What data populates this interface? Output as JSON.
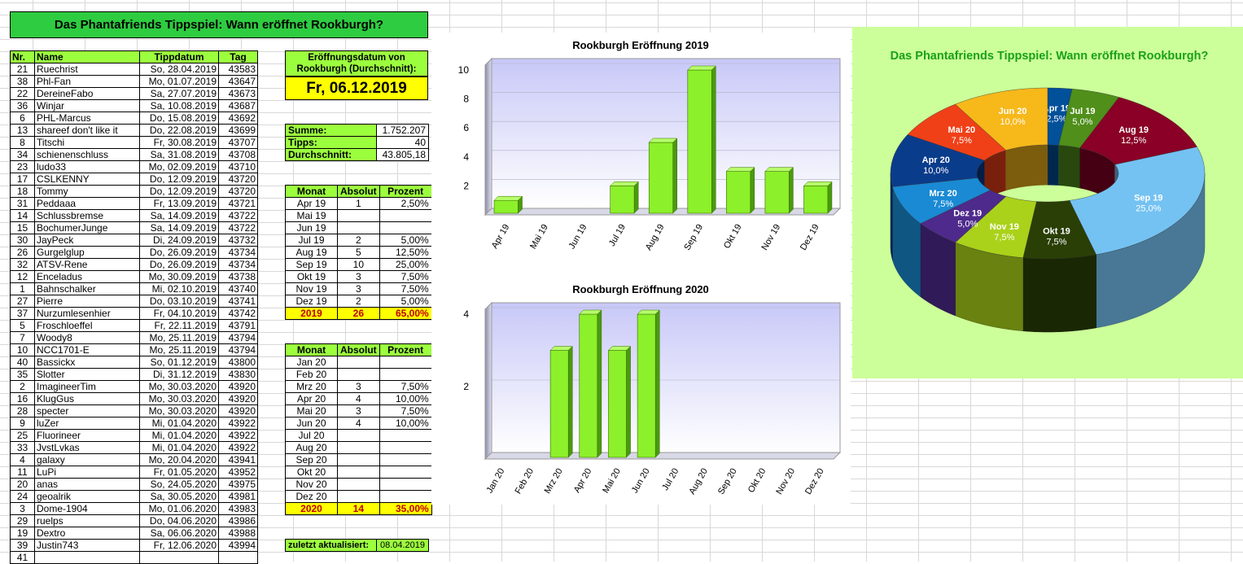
{
  "title": "Das Phantafriends Tippspiel: Wann eröffnet Rookburgh?",
  "table": {
    "headers": [
      "Nr.",
      "Name",
      "Tippdatum",
      "Tag"
    ],
    "rows": [
      [
        "21",
        "Ruechrist",
        "So, 28.04.2019",
        "43583"
      ],
      [
        "38",
        "Phl-Fan",
        "Mo, 01.07.2019",
        "43647"
      ],
      [
        "22",
        "DereineFabo",
        "Sa, 27.07.2019",
        "43673"
      ],
      [
        "36",
        "Winjar",
        "Sa, 10.08.2019",
        "43687"
      ],
      [
        "6",
        "PHL-Marcus",
        "Do, 15.08.2019",
        "43692"
      ],
      [
        "13",
        "shareef don't like it",
        "Do, 22.08.2019",
        "43699"
      ],
      [
        "8",
        "Titschi",
        "Fr, 30.08.2019",
        "43707"
      ],
      [
        "34",
        "schienenschluss",
        "Sa, 31.08.2019",
        "43708"
      ],
      [
        "23",
        "ludo33",
        "Mo, 02.09.2019",
        "43710"
      ],
      [
        "17",
        "CSLKENNY",
        "Do, 12.09.2019",
        "43720"
      ],
      [
        "18",
        "Tommy",
        "Do, 12.09.2019",
        "43720"
      ],
      [
        "31",
        "Peddaaa",
        "Fr, 13.09.2019",
        "43721"
      ],
      [
        "14",
        "Schlussbremse",
        "Sa, 14.09.2019",
        "43722"
      ],
      [
        "15",
        "BochumerJunge",
        "Sa, 14.09.2019",
        "43722"
      ],
      [
        "30",
        "JayPeck",
        "Di, 24.09.2019",
        "43732"
      ],
      [
        "26",
        "Gurgelglup",
        "Do, 26.09.2019",
        "43734"
      ],
      [
        "32",
        "ATSV-Rene",
        "Do, 26.09.2019",
        "43734"
      ],
      [
        "12",
        "Enceladus",
        "Mo, 30.09.2019",
        "43738"
      ],
      [
        "1",
        "Bahnschalker",
        "Mi, 02.10.2019",
        "43740"
      ],
      [
        "27",
        "Pierre",
        "Do, 03.10.2019",
        "43741"
      ],
      [
        "37",
        "Nurzumlesenhier",
        "Fr, 04.10.2019",
        "43742"
      ],
      [
        "5",
        "Froschloeffel",
        "Fr, 22.11.2019",
        "43791"
      ],
      [
        "7",
        "Woody8",
        "Mo, 25.11.2019",
        "43794"
      ],
      [
        "10",
        "NCC1701-E",
        "Mo, 25.11.2019",
        "43794"
      ],
      [
        "40",
        "Bassickx",
        "So, 01.12.2019",
        "43800"
      ],
      [
        "35",
        "Slotter",
        "Di, 31.12.2019",
        "43830"
      ],
      [
        "2",
        "ImagineerTim",
        "Mo, 30.03.2020",
        "43920"
      ],
      [
        "16",
        "KlugGus",
        "Mo, 30.03.2020",
        "43920"
      ],
      [
        "28",
        "specter",
        "Mo, 30.03.2020",
        "43920"
      ],
      [
        "9",
        "luZer",
        "Mi, 01.04.2020",
        "43922"
      ],
      [
        "25",
        "Fluorineer",
        "Mi, 01.04.2020",
        "43922"
      ],
      [
        "33",
        "JvstLvkas",
        "Mi, 01.04.2020",
        "43922"
      ],
      [
        "4",
        "galaxy",
        "Mo, 20.04.2020",
        "43941"
      ],
      [
        "11",
        "LuPi",
        "Fr, 01.05.2020",
        "43952"
      ],
      [
        "20",
        "anas",
        "So, 24.05.2020",
        "43975"
      ],
      [
        "24",
        "geoalrik",
        "Sa, 30.05.2020",
        "43981"
      ],
      [
        "3",
        "Dome-1904",
        "Mo, 01.06.2020",
        "43983"
      ],
      [
        "29",
        "ruelps",
        "Do, 04.06.2020",
        "43986"
      ],
      [
        "19",
        "Dextro",
        "Sa, 06.06.2020",
        "43988"
      ],
      [
        "39",
        "Justin743",
        "Fr, 12.06.2020",
        "43994"
      ],
      [
        "41",
        "",
        "",
        ""
      ]
    ]
  },
  "opening": {
    "label": "Eröffnungsdatum von Rookburgh (Durchschnitt):",
    "value": "Fr, 06.12.2019"
  },
  "stats": [
    {
      "label": "Summe:",
      "value": "1.752.207"
    },
    {
      "label": "Tipps:",
      "value": "40"
    },
    {
      "label": "Durchschnitt:",
      "value": "43.805,18"
    }
  ],
  "months_headers": [
    "Monat",
    "Absolut",
    "Prozent"
  ],
  "months2019": [
    [
      "Apr 19",
      "1",
      "2,50%"
    ],
    [
      "Mai 19",
      "",
      ""
    ],
    [
      "Jun 19",
      "",
      ""
    ],
    [
      "Jul 19",
      "2",
      "5,00%"
    ],
    [
      "Aug 19",
      "5",
      "12,50%"
    ],
    [
      "Sep 19",
      "10",
      "25,00%"
    ],
    [
      "Okt 19",
      "3",
      "7,50%"
    ],
    [
      "Nov 19",
      "3",
      "7,50%"
    ],
    [
      "Dez 19",
      "2",
      "5,00%"
    ]
  ],
  "total2019": [
    "2019",
    "26",
    "65,00%"
  ],
  "months2020": [
    [
      "Jan 20",
      "",
      ""
    ],
    [
      "Feb 20",
      "",
      ""
    ],
    [
      "Mrz 20",
      "3",
      "7,50%"
    ],
    [
      "Apr 20",
      "4",
      "10,00%"
    ],
    [
      "Mai 20",
      "3",
      "7,50%"
    ],
    [
      "Jun 20",
      "4",
      "10,00%"
    ],
    [
      "Jul 20",
      "",
      ""
    ],
    [
      "Aug 20",
      "",
      ""
    ],
    [
      "Sep 20",
      "",
      ""
    ],
    [
      "Okt 20",
      "",
      ""
    ],
    [
      "Nov 20",
      "",
      ""
    ],
    [
      "Dez 20",
      "",
      ""
    ]
  ],
  "total2020": [
    "2020",
    "14",
    "35,00%"
  ],
  "updated": {
    "label": "zuletzt aktualisiert:",
    "value": "08.04.2019"
  },
  "chart_data": [
    {
      "type": "bar",
      "title": "Rookburgh Eröffnung 2019",
      "categories": [
        "Apr 19",
        "Mai 19",
        "Jun 19",
        "Jul 19",
        "Aug 19",
        "Sep 19",
        "Okt 19",
        "Nov 19",
        "Dez 19"
      ],
      "values": [
        1,
        0,
        0,
        2,
        5,
        10,
        3,
        3,
        2
      ],
      "ylim": [
        0,
        10
      ],
      "yticks": [
        2,
        4,
        6,
        8,
        10
      ],
      "color": "#8cf02a"
    },
    {
      "type": "bar",
      "title": "Rookburgh Eröffnung 2020",
      "categories": [
        "Jan 20",
        "Feb 20",
        "Mrz 20",
        "Apr 20",
        "Mai 20",
        "Jun 20",
        "Jul 20",
        "Aug 20",
        "Sep 20",
        "Okt 20",
        "Nov 20",
        "Dez 20"
      ],
      "values": [
        0,
        0,
        3,
        4,
        3,
        4,
        0,
        0,
        0,
        0,
        0,
        0
      ],
      "ylim": [
        0,
        4
      ],
      "yticks": [
        2,
        4
      ],
      "color": "#8cf02a"
    },
    {
      "type": "pie",
      "title": "Das Phantafriends Tippspiel: Wann eröffnet Rookburgh?",
      "slices": [
        {
          "label": "Apr 19",
          "pct": "2,5%",
          "value": 2.5,
          "color": "#00509a"
        },
        {
          "label": "Jul 19",
          "pct": "5,0%",
          "value": 5,
          "color": "#4f8f1a"
        },
        {
          "label": "Aug 19",
          "pct": "12,5%",
          "value": 12.5,
          "color": "#8a0026"
        },
        {
          "label": "Sep 19",
          "pct": "25,0%",
          "value": 25,
          "color": "#74c2f2"
        },
        {
          "label": "Okt 19",
          "pct": "7,5%",
          "value": 7.5,
          "color": "#2a3f06"
        },
        {
          "label": "Nov 19",
          "pct": "7,5%",
          "value": 7.5,
          "color": "#aad21a"
        },
        {
          "label": "Dez 19",
          "pct": "5,0%",
          "value": 5,
          "color": "#4e2a8c"
        },
        {
          "label": "Mrz 20",
          "pct": "7,5%",
          "value": 7.5,
          "color": "#1a8ad4"
        },
        {
          "label": "Apr 20",
          "pct": "10,0%",
          "value": 10,
          "color": "#0a3c8c"
        },
        {
          "label": "Mai 20",
          "pct": "7,5%",
          "value": 7.5,
          "color": "#f04018"
        },
        {
          "label": "Jun 20",
          "pct": "10,0%",
          "value": 10,
          "color": "#f7b81a"
        }
      ]
    }
  ]
}
